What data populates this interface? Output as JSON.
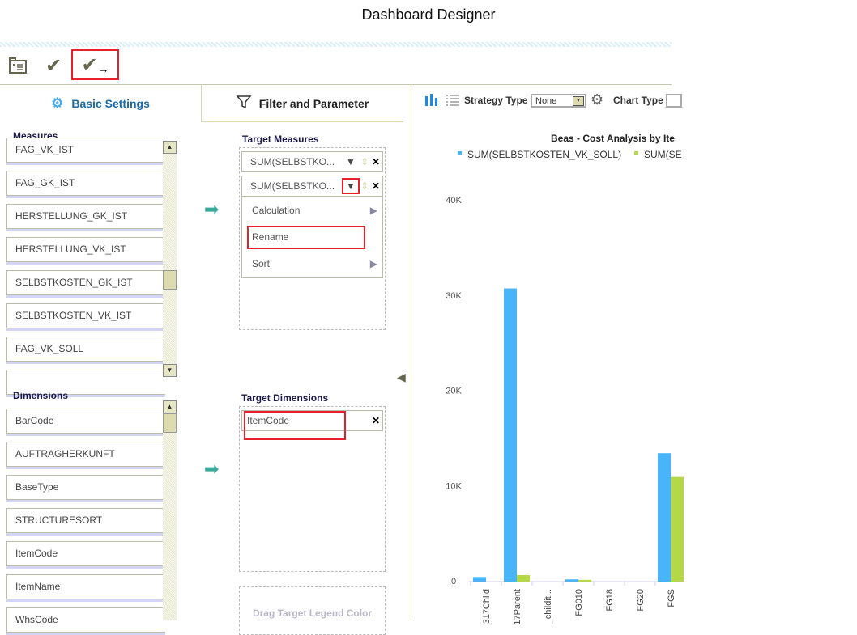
{
  "window": {
    "title": "Dashboard Designer"
  },
  "toolbar": {
    "items": [
      {
        "name": "layout-icon"
      },
      {
        "name": "check-icon"
      },
      {
        "name": "check-and-proceed-icon"
      }
    ]
  },
  "tabs": {
    "basic": "Basic Settings",
    "filter": "Filter and Parameter"
  },
  "measures": {
    "label": "Measures",
    "items": [
      "FAG_VK_IST",
      "FAG_GK_IST",
      "HERSTELLUNG_GK_IST",
      "HERSTELLUNG_VK_IST",
      "SELBSTKOSTEN_GK_IST",
      "SELBSTKOSTEN_VK_IST",
      "FAG_VK_SOLL"
    ]
  },
  "dimensions": {
    "label": "Dimensions",
    "items": [
      "BarCode",
      "AUFTRAGHERKUNFT",
      "BaseType",
      "STRUCTURESORT",
      "ItemCode",
      "ItemName",
      "WhsCode"
    ]
  },
  "target_measures": {
    "label": "Target Measures",
    "items": [
      "SUM(SELBSTKO...",
      "SUM(SELBSTKO..."
    ],
    "menu": [
      "Calculation",
      "Rename",
      "Sort"
    ]
  },
  "target_dimensions": {
    "label": "Target Dimensions",
    "items": [
      "ItemCode"
    ]
  },
  "legend_color": {
    "placeholder": "Drag Target Legend Color"
  },
  "chart_toolbar": {
    "strategy_label": "Strategy Type",
    "strategy_value": "None",
    "chart_type_label": "Chart Type"
  },
  "chart_data": {
    "type": "bar",
    "title": "Beas - Cost Analysis by Ite",
    "categories": [
      "317Child",
      "17Parent",
      "_childit...",
      "FG010",
      "FG18",
      "FG20",
      "FGS"
    ],
    "series": [
      {
        "name": "SUM(SELBSTKOSTEN_VK_SOLL)",
        "color": "#4ab4fa",
        "values": [
          400,
          30700,
          0,
          150,
          0,
          0,
          13400
        ]
      },
      {
        "name": "SUM(SE",
        "color": "#b4d84a",
        "values": [
          0,
          600,
          0,
          100,
          0,
          0,
          10900
        ]
      }
    ],
    "yticks": [
      "0",
      "10K",
      "20K",
      "30K",
      "40K"
    ],
    "ylim": [
      0,
      40000
    ],
    "legend": "top"
  }
}
